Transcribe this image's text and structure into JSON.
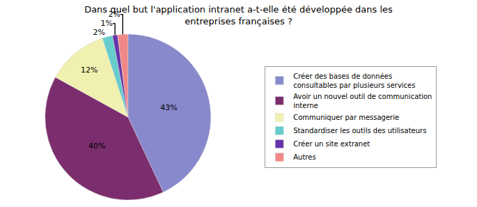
{
  "chart_data": {
    "type": "pie",
    "title": "Dans quel but l'application intranet a-t-elle été développée dans les\nentreprises françaises ?",
    "categories": [
      "Créer des bases de données\nconsultables par plusieurs services",
      "Avoir un nouvel outil de communication\ninterne",
      "Communiquer par messagerie",
      "Standardiser les outils des utilisateurs",
      "Créer un site extranet",
      "Autres"
    ],
    "values": [
      43,
      40,
      12,
      2,
      1,
      2
    ],
    "value_labels": [
      "43%",
      "40%",
      "12%",
      "2%",
      "1%",
      "2%"
    ],
    "colors": [
      "#8888cc",
      "#7b2d6e",
      "#f0f0b0",
      "#66cccc",
      "#6633aa",
      "#f08888"
    ],
    "data_labels": true,
    "legend": "right"
  }
}
